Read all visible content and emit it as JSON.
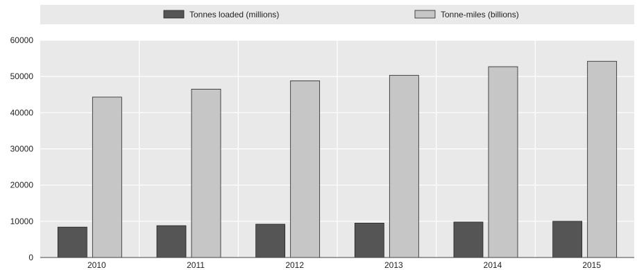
{
  "chart_data": {
    "type": "bar",
    "categories": [
      "2010",
      "2011",
      "2012",
      "2013",
      "2014",
      "2015"
    ],
    "series": [
      {
        "name": "Tonnes loaded (millions)",
        "values": [
          8400,
          8800,
          9200,
          9500,
          9800,
          10000
        ],
        "color": "#555555"
      },
      {
        "name": "Tonne-miles (billions)",
        "values": [
          44300,
          46500,
          48800,
          50300,
          52700,
          54200
        ],
        "color": "#c6c6c6"
      }
    ],
    "y_ticks": [
      "0",
      "10000",
      "20000",
      "30000",
      "40000",
      "50000",
      "60000"
    ],
    "ylim": [
      0,
      60000
    ],
    "grid": true,
    "legend_position": "top",
    "colors": {
      "plot_background": "#e9e9e9",
      "legend_background": "#e9e9e9",
      "grid": "#ffffff",
      "bar_outline": "#222222"
    }
  }
}
